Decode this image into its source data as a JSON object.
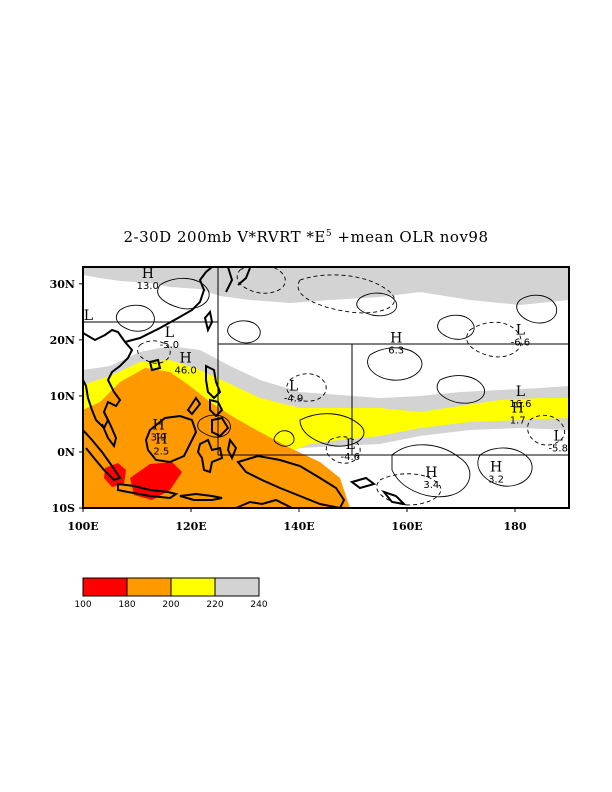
{
  "title": {
    "main": "2-30D 200mb V*RVRT *E",
    "sup": "5",
    "rest": " +mean OLR nov98"
  },
  "map": {
    "lon_range": [
      100,
      190
    ],
    "lat_range": [
      -10,
      33
    ],
    "x_ticks": [
      {
        "value": 100,
        "label": "100E"
      },
      {
        "value": 120,
        "label": "120E"
      },
      {
        "value": 140,
        "label": "140E"
      },
      {
        "value": 160,
        "label": "160E"
      },
      {
        "value": 180,
        "label": "180"
      }
    ],
    "y_ticks": [
      {
        "value": 30,
        "label": "30N"
      },
      {
        "value": 20,
        "label": "20N"
      },
      {
        "value": 10,
        "label": "10N"
      },
      {
        "value": 0,
        "label": "0N"
      },
      {
        "value": -10,
        "label": "10S"
      }
    ],
    "extrema": [
      {
        "type": "H",
        "value": "13.0",
        "lon": 112,
        "lat": 31
      },
      {
        "type": "L",
        "value": "",
        "lon": 101,
        "lat": 23.5
      },
      {
        "type": "L",
        "value": "-5.0",
        "lon": 116,
        "lat": 20.5
      },
      {
        "type": "H",
        "value": "46.0",
        "lon": 119,
        "lat": 16
      },
      {
        "type": "L",
        "value": "-4.9",
        "lon": 139,
        "lat": 11
      },
      {
        "type": "H",
        "value": "6.3",
        "lon": 158,
        "lat": 19.5
      },
      {
        "type": "L",
        "value": "-6.6",
        "lon": 181,
        "lat": 21
      },
      {
        "type": "L",
        "value": "16.6",
        "lon": 181,
        "lat": 10
      },
      {
        "type": "H",
        "value": "1.7",
        "lon": 180.5,
        "lat": 7
      },
      {
        "type": "L",
        "value": "-5.8",
        "lon": 188,
        "lat": 2
      },
      {
        "type": "H",
        "value": "3.9",
        "lon": 114,
        "lat": 4
      },
      {
        "type": "H",
        "value": "2.5",
        "lon": 114.5,
        "lat": 1.5
      },
      {
        "type": "L",
        "value": "-4.6",
        "lon": 149.5,
        "lat": 0.5
      },
      {
        "type": "H",
        "value": "3.4",
        "lon": 164.5,
        "lat": -4.5
      },
      {
        "type": "H",
        "value": "3.2",
        "lon": 176.5,
        "lat": -3.5
      }
    ]
  },
  "colorbar": {
    "colors": [
      "#ff0000",
      "#ff9900",
      "#ffff00",
      "#d3d3d3"
    ],
    "labels": [
      "100",
      "180",
      "200",
      "220",
      "240"
    ]
  }
}
